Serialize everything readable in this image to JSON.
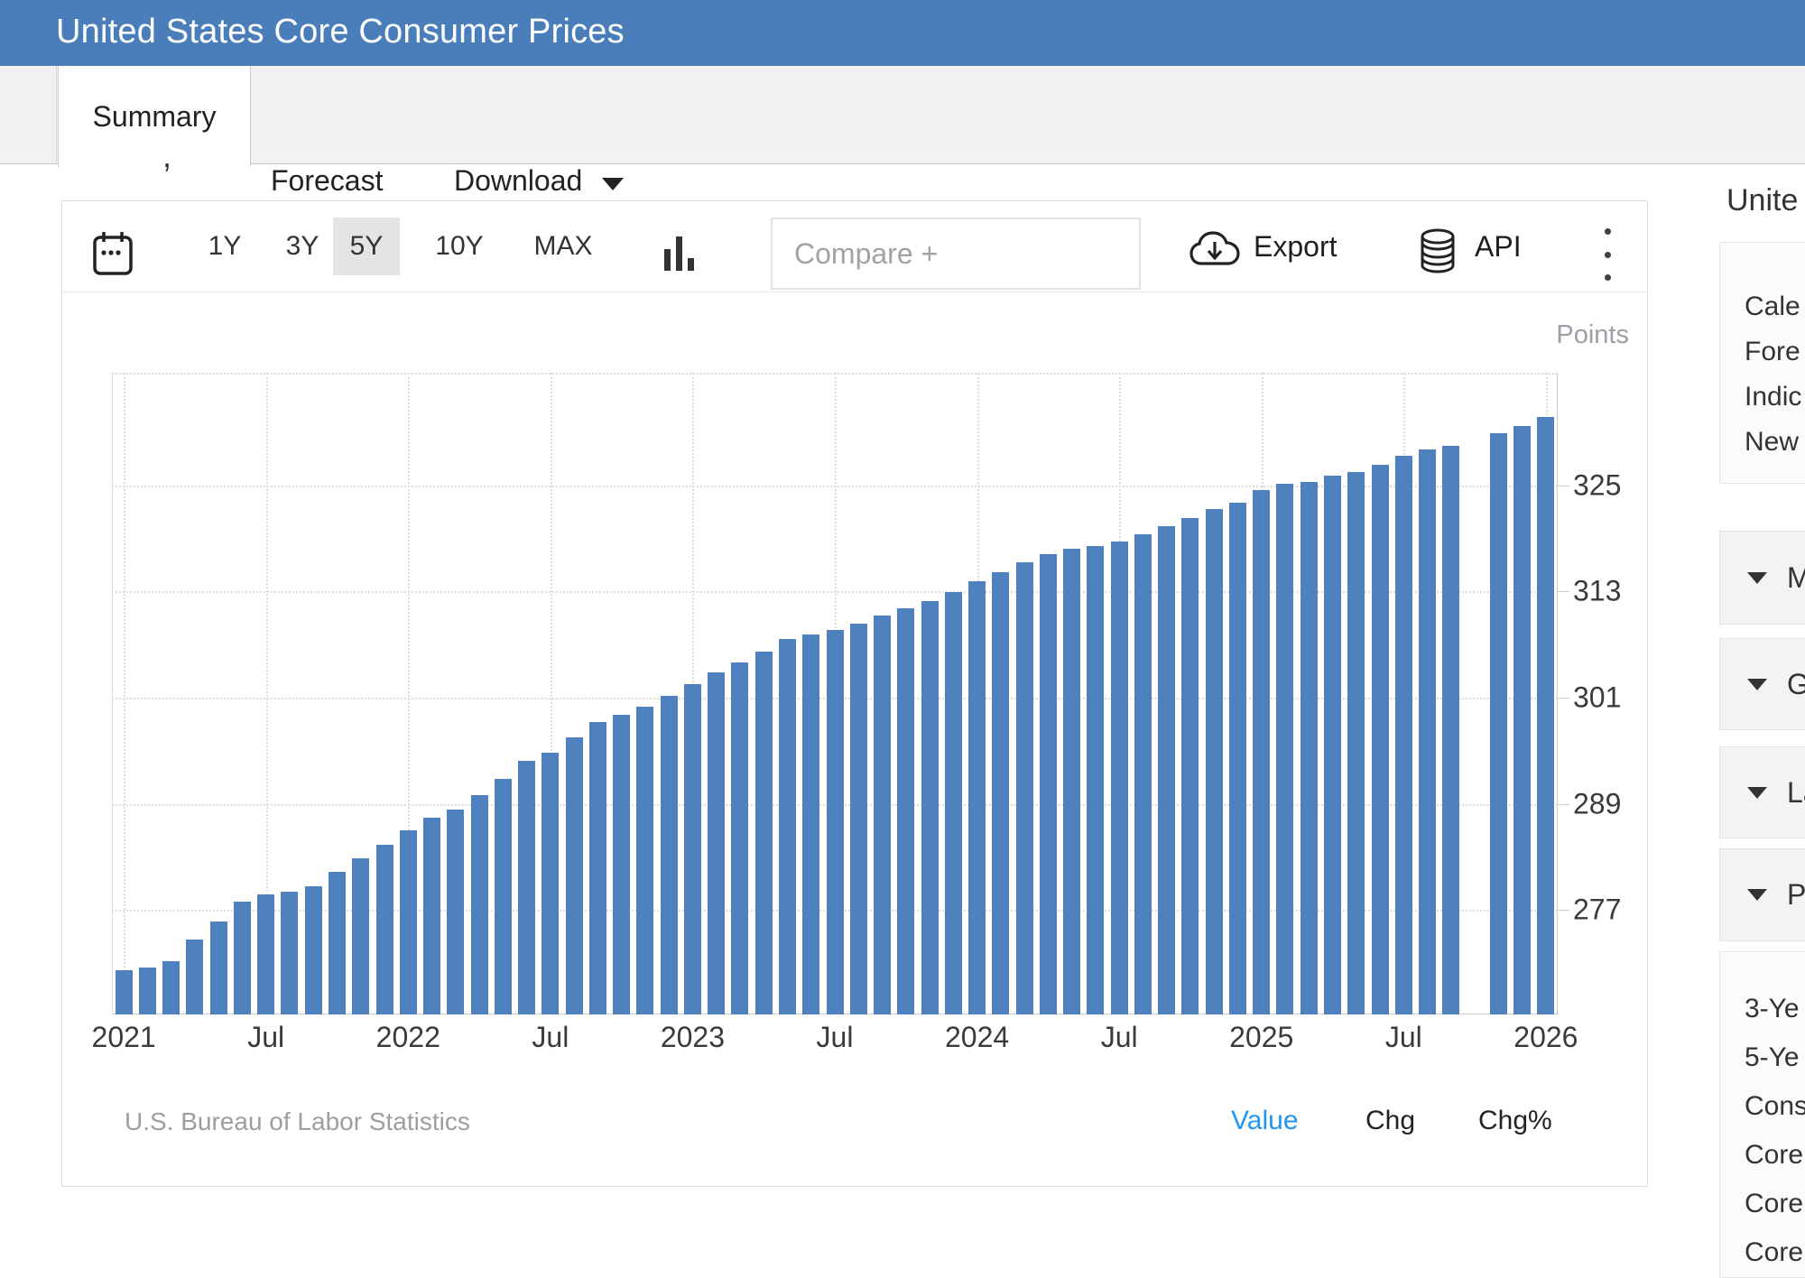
{
  "header": {
    "title": "United States Core Consumer Prices",
    "background": "#4a7ebb"
  },
  "tabs": {
    "summary": "Summary",
    "forecast": "Forecast",
    "download": "Download",
    "active": "Summary",
    "stray_glyph": ","
  },
  "toolbar": {
    "ranges": [
      "1Y",
      "3Y",
      "5Y",
      "10Y",
      "MAX"
    ],
    "selected_range": "5Y",
    "compare_placeholder": "Compare +",
    "export_label": "Export",
    "api_label": "API",
    "icons": [
      "calendar-icon",
      "column-chart-icon",
      "cloud-download-icon",
      "database-icon",
      "kebab-menu-icon"
    ]
  },
  "chart_data": {
    "type": "bar",
    "title": "United States Core Consumer Prices",
    "unit_label": "Points",
    "source": "U.S. Bureau of Labor Statistics",
    "bar_color": "#4e81bd",
    "grid": "dotted",
    "legend": "none",
    "ylim": [
      265.2,
      337.7
    ],
    "yticks": [
      325,
      313,
      301,
      289,
      277
    ],
    "xticks": {
      "slots": [
        0,
        6,
        12,
        18,
        24,
        30,
        36,
        42,
        48,
        54,
        60
      ],
      "labels": [
        "2021",
        "Jul",
        "2022",
        "Jul",
        "2023",
        "Jul",
        "2024",
        "Jul",
        "2025",
        "Jul",
        "2026"
      ]
    },
    "categories": [
      "Jan 2021",
      "Feb 2021",
      "Mar 2021",
      "Apr 2021",
      "May 2021",
      "Jun 2021",
      "Jul 2021",
      "Aug 2021",
      "Sep 2021",
      "Oct 2021",
      "Nov 2021",
      "Dec 2021",
      "Jan 2022",
      "Feb 2022",
      "Mar 2022",
      "Apr 2022",
      "May 2022",
      "Jun 2022",
      "Jul 2022",
      "Aug 2022",
      "Sep 2022",
      "Oct 2022",
      "Nov 2022",
      "Dec 2022",
      "Jan 2023",
      "Feb 2023",
      "Mar 2023",
      "Apr 2023",
      "May 2023",
      "Jun 2023",
      "Jul 2023",
      "Aug 2023",
      "Sep 2023",
      "Oct 2023",
      "Nov 2023",
      "Dec 2023",
      "Jan 2024",
      "Feb 2024",
      "Mar 2024",
      "Apr 2024",
      "May 2024",
      "Jun 2024",
      "Jul 2024",
      "Aug 2024",
      "Sep 2024",
      "Oct 2024",
      "Nov 2024",
      "Dec 2024",
      "Jan 2025",
      "Feb 2025",
      "Mar 2025",
      "Apr 2025",
      "May 2025",
      "Jun 2025",
      "Jul 2025",
      "Aug 2025",
      "Sep 2025",
      "Oct 2025",
      "Nov 2025",
      "Dec 2025",
      "Jan 2026"
    ],
    "values": [
      270.2,
      270.5,
      271.2,
      273.7,
      275.7,
      277.9,
      278.8,
      279.1,
      279.7,
      281.3,
      282.8,
      284.4,
      286.0,
      287.4,
      288.3,
      290.0,
      291.8,
      293.9,
      294.8,
      296.5,
      298.2,
      299.1,
      300.0,
      301.2,
      302.5,
      303.8,
      305.0,
      306.2,
      307.6,
      308.1,
      308.6,
      309.4,
      310.3,
      311.1,
      311.9,
      312.9,
      314.1,
      315.2,
      316.3,
      317.2,
      317.8,
      318.1,
      318.6,
      319.5,
      320.4,
      321.3,
      322.3,
      323.0,
      324.4,
      325.2,
      325.4,
      326.1,
      326.5,
      327.3,
      328.3,
      329.0,
      329.4,
      null,
      330.9,
      331.7,
      332.7
    ]
  },
  "footer": {
    "source": "U.S. Bureau of Labor Statistics",
    "modes": [
      "Value",
      "Chg",
      "Chg%"
    ],
    "active_mode": "Value"
  },
  "sidebar": {
    "heading": "Unite",
    "links": [
      "Cale",
      "Fore",
      "Indic",
      "New"
    ],
    "sections": [
      "M",
      "G",
      "La",
      "P"
    ],
    "related": [
      "3-Ye",
      "5-Ye",
      "Cons",
      "Core",
      "Core",
      "Core"
    ]
  }
}
